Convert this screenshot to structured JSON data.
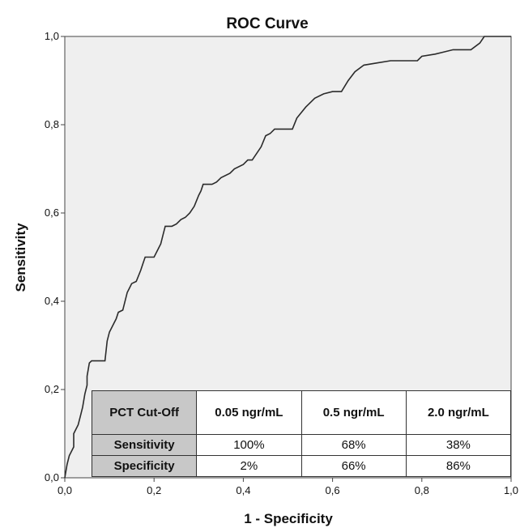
{
  "chart_data": {
    "type": "line",
    "title": "ROC Curve",
    "xlabel": "1 - Specificity",
    "ylabel": "Sensitivity",
    "xlim": [
      0,
      1
    ],
    "ylim": [
      0,
      1
    ],
    "xticks": [
      "0,0",
      "0,2",
      "0,4",
      "0,6",
      "0,8",
      "1,0"
    ],
    "yticks": [
      "0,0",
      "0,2",
      "0,4",
      "0,6",
      "0,8",
      "1,0"
    ],
    "grid": false,
    "series": [
      {
        "x": [
          0.0,
          0.005,
          0.01,
          0.02,
          0.02,
          0.03,
          0.035,
          0.04,
          0.045,
          0.05,
          0.05,
          0.055,
          0.06,
          0.07,
          0.075,
          0.09,
          0.095,
          0.1,
          0.11,
          0.115,
          0.12,
          0.13,
          0.14,
          0.145,
          0.15,
          0.16,
          0.17,
          0.175,
          0.18,
          0.19,
          0.2,
          0.21,
          0.215,
          0.22,
          0.225,
          0.23,
          0.24,
          0.25,
          0.26,
          0.27,
          0.28,
          0.29,
          0.3,
          0.305,
          0.31,
          0.32,
          0.33,
          0.34,
          0.35,
          0.37,
          0.38,
          0.4,
          0.41,
          0.42,
          0.43,
          0.44,
          0.45,
          0.46,
          0.47,
          0.49,
          0.51,
          0.52,
          0.54,
          0.56,
          0.58,
          0.6,
          0.62,
          0.635,
          0.65,
          0.67,
          0.7,
          0.73,
          0.79,
          0.8,
          0.83,
          0.85,
          0.87,
          0.91,
          0.93,
          0.94,
          0.97,
          1.0
        ],
        "y": [
          0.0,
          0.03,
          0.05,
          0.07,
          0.1,
          0.12,
          0.14,
          0.16,
          0.19,
          0.21,
          0.23,
          0.26,
          0.265,
          0.265,
          0.265,
          0.265,
          0.31,
          0.33,
          0.35,
          0.36,
          0.375,
          0.38,
          0.42,
          0.43,
          0.44,
          0.445,
          0.47,
          0.485,
          0.5,
          0.5,
          0.5,
          0.52,
          0.53,
          0.55,
          0.57,
          0.57,
          0.57,
          0.575,
          0.585,
          0.59,
          0.6,
          0.615,
          0.64,
          0.65,
          0.665,
          0.665,
          0.665,
          0.67,
          0.68,
          0.69,
          0.7,
          0.71,
          0.72,
          0.72,
          0.735,
          0.75,
          0.775,
          0.78,
          0.79,
          0.79,
          0.79,
          0.815,
          0.84,
          0.86,
          0.87,
          0.875,
          0.875,
          0.9,
          0.92,
          0.935,
          0.94,
          0.945,
          0.945,
          0.955,
          0.96,
          0.965,
          0.97,
          0.97,
          0.985,
          1.0,
          1.0,
          1.0
        ]
      }
    ]
  },
  "table": {
    "headers": [
      "PCT Cut-Off",
      "0.05 ngr/mL",
      "0.5 ngr/mL",
      "2.0 ngr/mL"
    ],
    "rows": [
      {
        "label": "Sensitivity",
        "values": [
          "100%",
          "68%",
          "38%"
        ]
      },
      {
        "label": "Specificity",
        "values": [
          "2%",
          "66%",
          "86%"
        ]
      }
    ]
  },
  "colors": {
    "plot_background": "#efefef",
    "curve": "#2b2b2b",
    "table_label_background": "#c8c8c8"
  }
}
